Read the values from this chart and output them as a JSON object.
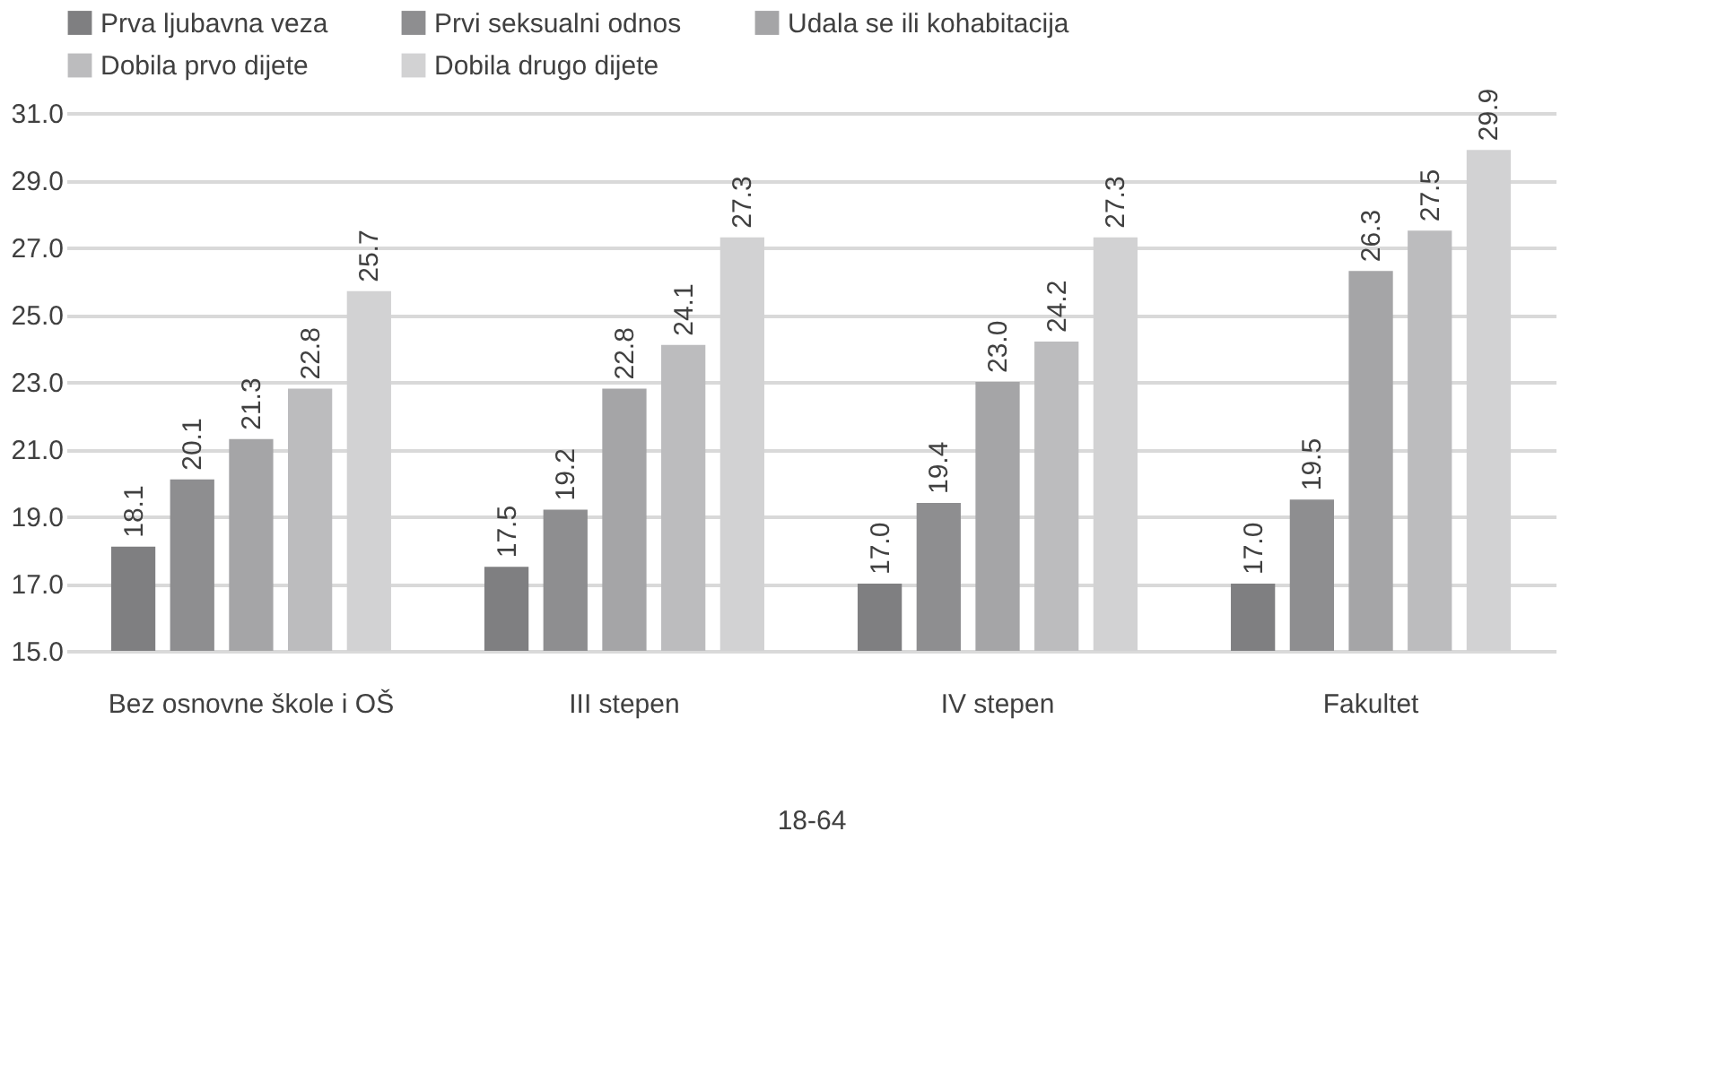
{
  "chart_data": {
    "type": "bar",
    "xlabel": "18-64",
    "categories": [
      "Bez osnovne škole i OŠ",
      "III stepen",
      "IV stepen",
      "Fakultet"
    ],
    "series": [
      {
        "name": "Prva ljubavna veza",
        "color": "#7f7f81",
        "values": [
          18.1,
          17.5,
          17.0,
          17.0
        ],
        "value_labels": [
          "18.1",
          "17.5",
          "17.0",
          "17.0"
        ]
      },
      {
        "name": "Prvi seksualni odnos",
        "color": "#8e8e90",
        "values": [
          20.1,
          19.2,
          19.4,
          19.5
        ],
        "value_labels": [
          "20.1",
          "19.2",
          "19.4",
          "19.5"
        ]
      },
      {
        "name": "Udala se ili kohabitacija",
        "color": "#a5a5a7",
        "values": [
          21.3,
          22.8,
          23.0,
          26.3
        ],
        "value_labels": [
          "21.3",
          "22.8",
          "23.0",
          "26.3"
        ]
      },
      {
        "name": "Dobila prvo dijete",
        "color": "#bcbcbe",
        "values": [
          22.8,
          24.1,
          24.2,
          27.5
        ],
        "value_labels": [
          "22.8",
          "24.1",
          "24.2",
          "27.5"
        ]
      },
      {
        "name": "Dobila drugo dijete",
        "color": "#d2d2d3",
        "values": [
          25.7,
          27.3,
          27.3,
          29.9
        ],
        "value_labels": [
          "25.7",
          "27.3",
          "27.3",
          "29.9"
        ]
      }
    ],
    "ylim": [
      15,
      31
    ],
    "yticks": [
      {
        "value": 15,
        "label": "15.0"
      },
      {
        "value": 17,
        "label": "17.0"
      },
      {
        "value": 19,
        "label": "19.0"
      },
      {
        "value": 21,
        "label": "21.0"
      },
      {
        "value": 23,
        "label": "23.0"
      },
      {
        "value": 25,
        "label": "25.0"
      },
      {
        "value": 27,
        "label": "27.0"
      },
      {
        "value": 29,
        "label": "29.0"
      },
      {
        "value": 31,
        "label": "31.0"
      }
    ],
    "grid": "y",
    "legend": "top"
  }
}
